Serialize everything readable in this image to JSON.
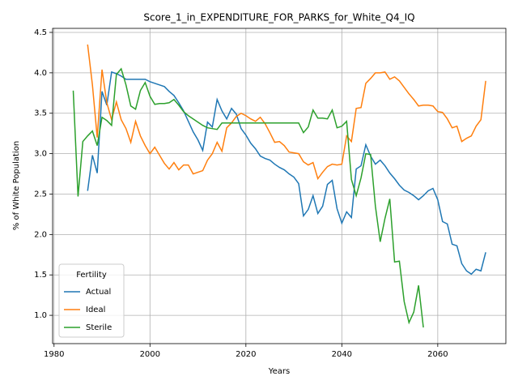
{
  "chart_data": {
    "type": "line",
    "title": "Score_1_in_EXPENDITURE_FOR_PARKS_for_White_Q4_IQ",
    "x_label": "Years",
    "y_label": "% of White Population",
    "legend_title": "Fertility",
    "legend_loc": "lower left",
    "grid": true,
    "xlim": [
      1979.7,
      2074.2
    ],
    "ylim": [
      0.65,
      4.55
    ],
    "xticks": [
      1980,
      2000,
      2020,
      2040,
      2060
    ],
    "yticks": [
      {
        "value": 1.0,
        "label": "1.0"
      },
      1.5,
      {
        "value": 2.0,
        "label": "2.0"
      },
      2.5,
      {
        "value": 3.0,
        "label": "3.0"
      },
      3.5,
      {
        "value": 4.0,
        "label": "4.0"
      },
      4.5
    ],
    "x": [
      1984,
      1985,
      1986,
      1987,
      1988,
      1989,
      1990,
      1991,
      1992,
      1993,
      1994,
      1995,
      1996,
      1997,
      1998,
      1999,
      2000,
      2001,
      2002,
      2003,
      2004,
      2005,
      2006,
      2007,
      2008,
      2009,
      2010,
      2011,
      2012,
      2013,
      2014,
      2015,
      2016,
      2017,
      2018,
      2019,
      2020,
      2021,
      2022,
      2023,
      2024,
      2025,
      2026,
      2027,
      2028,
      2029,
      2030,
      2031,
      2032,
      2033,
      2034,
      2035,
      2036,
      2037,
      2038,
      2039,
      2040,
      2041,
      2042,
      2043,
      2044,
      2045,
      2046,
      2047,
      2048,
      2049,
      2050,
      2051,
      2052,
      2053,
      2054,
      2055,
      2056,
      2057,
      2058,
      2059,
      2060,
      2061,
      2062,
      2063,
      2064,
      2065,
      2066,
      2067,
      2068,
      2069,
      2070
    ],
    "series": [
      {
        "name": "Actual",
        "color": "#1f77b4",
        "values": [
          null,
          null,
          null,
          2.54,
          2.98,
          2.76,
          3.77,
          3.6,
          4.01,
          3.99,
          3.96,
          3.92,
          3.92,
          3.92,
          3.92,
          3.92,
          3.89,
          3.87,
          3.85,
          3.83,
          3.77,
          3.72,
          3.63,
          3.53,
          3.4,
          3.27,
          3.17,
          3.04,
          3.39,
          3.33,
          3.67,
          3.53,
          3.43,
          3.56,
          3.49,
          3.31,
          3.23,
          3.13,
          3.06,
          2.97,
          2.94,
          2.92,
          2.87,
          2.83,
          2.8,
          2.75,
          2.71,
          2.63,
          2.23,
          2.31,
          2.48,
          2.26,
          2.35,
          2.62,
          2.67,
          2.32,
          2.14,
          2.28,
          2.21,
          2.81,
          2.85,
          3.11,
          2.97,
          2.87,
          2.92,
          2.85,
          2.76,
          2.69,
          2.61,
          2.55,
          2.52,
          2.48,
          2.43,
          2.48,
          2.54,
          2.57,
          2.43,
          2.16,
          2.13,
          1.88,
          1.86,
          1.64,
          1.55,
          1.51,
          1.57,
          1.55,
          1.78
        ]
      },
      {
        "name": "Ideal",
        "color": "#ff7f0e",
        "values": [
          null,
          null,
          null,
          4.35,
          3.85,
          3.2,
          4.04,
          3.63,
          3.42,
          3.64,
          3.42,
          3.31,
          3.14,
          3.4,
          3.22,
          3.1,
          3.0,
          3.08,
          2.98,
          2.88,
          2.81,
          2.89,
          2.8,
          2.86,
          2.86,
          2.75,
          2.77,
          2.79,
          2.92,
          3.0,
          3.14,
          3.03,
          3.32,
          3.38,
          3.46,
          3.5,
          3.47,
          3.43,
          3.4,
          3.45,
          3.37,
          3.26,
          3.14,
          3.15,
          3.1,
          3.02,
          3.01,
          3.0,
          2.9,
          2.86,
          2.89,
          2.69,
          2.77,
          2.84,
          2.87,
          2.86,
          2.87,
          3.22,
          3.15,
          3.56,
          3.57,
          3.87,
          3.93,
          4.0,
          4.0,
          4.01,
          3.92,
          3.95,
          3.9,
          3.82,
          3.74,
          3.67,
          3.59,
          3.6,
          3.6,
          3.59,
          3.52,
          3.51,
          3.43,
          3.32,
          3.34,
          3.15,
          3.19,
          3.22,
          3.34,
          3.42,
          3.9
        ]
      },
      {
        "name": "Sterile",
        "color": "#2ca02c",
        "values": [
          3.78,
          2.47,
          3.15,
          3.22,
          3.28,
          3.1,
          3.45,
          3.41,
          3.35,
          3.98,
          4.05,
          3.85,
          3.59,
          3.55,
          3.78,
          3.88,
          3.71,
          3.61,
          3.62,
          3.62,
          3.63,
          3.67,
          3.6,
          3.52,
          3.47,
          3.43,
          3.39,
          3.35,
          3.32,
          3.31,
          3.3,
          3.38,
          3.38,
          3.38,
          3.38,
          3.38,
          3.38,
          3.38,
          3.38,
          3.38,
          3.38,
          3.38,
          3.38,
          3.38,
          3.38,
          3.38,
          3.38,
          3.38,
          3.26,
          3.33,
          3.54,
          3.44,
          3.44,
          3.43,
          3.54,
          3.32,
          3.34,
          3.4,
          2.68,
          2.48,
          2.7,
          3.0,
          2.99,
          2.35,
          1.91,
          2.2,
          2.44,
          1.66,
          1.67,
          1.17,
          0.91,
          1.04,
          1.37,
          0.85,
          null,
          null,
          null,
          null,
          null,
          null,
          null,
          null,
          null,
          null,
          null,
          null,
          null
        ]
      }
    ]
  }
}
